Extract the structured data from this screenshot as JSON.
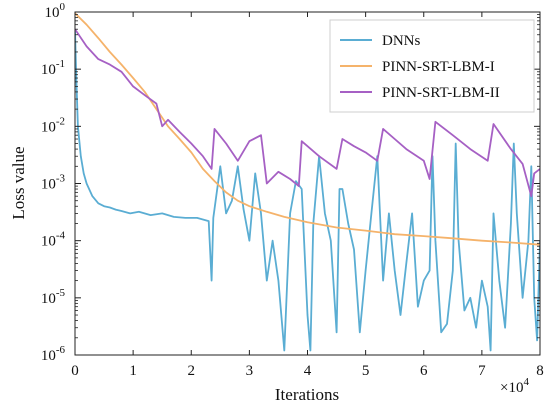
{
  "chart_data": {
    "type": "line",
    "title": "",
    "xlabel": "Iterations",
    "ylabel": "Loss value",
    "x_multiplier": "×10",
    "x_multiplier_exp": "4",
    "xlim": [
      0,
      8
    ],
    "ylim": [
      1e-06,
      1
    ],
    "yscale": "log",
    "grid": false,
    "legend_position": "top-right",
    "x_ticks": [
      0,
      1,
      2,
      3,
      4,
      5,
      6,
      7,
      8
    ],
    "y_ticks": [
      {
        "value": 1,
        "base": "10",
        "exp": "0"
      },
      {
        "value": 0.1,
        "base": "10",
        "exp": "-1"
      },
      {
        "value": 0.01,
        "base": "10",
        "exp": "-2"
      },
      {
        "value": 0.001,
        "base": "10",
        "exp": "-3"
      },
      {
        "value": 0.0001,
        "base": "10",
        "exp": "-4"
      },
      {
        "value": 1e-05,
        "base": "10",
        "exp": "-5"
      },
      {
        "value": 1e-06,
        "base": "10",
        "exp": "-6"
      }
    ],
    "series": [
      {
        "name": "DNNs",
        "color": "#5aadd3",
        "points": [
          [
            0.0,
            0.5
          ],
          [
            0.02,
            0.08
          ],
          [
            0.05,
            0.01
          ],
          [
            0.1,
            0.003
          ],
          [
            0.15,
            0.0015
          ],
          [
            0.2,
            0.001
          ],
          [
            0.3,
            0.0006
          ],
          [
            0.4,
            0.00045
          ],
          [
            0.5,
            0.0004
          ],
          [
            0.6,
            0.00038
          ],
          [
            0.7,
            0.00035
          ],
          [
            0.8,
            0.00033
          ],
          [
            0.95,
            0.0003
          ],
          [
            1.1,
            0.00032
          ],
          [
            1.3,
            0.00028
          ],
          [
            1.5,
            0.0003
          ],
          [
            1.7,
            0.00026
          ],
          [
            1.9,
            0.00025
          ],
          [
            2.1,
            0.00025
          ],
          [
            2.3,
            0.00022
          ],
          [
            2.35,
            2e-05
          ],
          [
            2.38,
            0.00025
          ],
          [
            2.5,
            0.002
          ],
          [
            2.6,
            0.0003
          ],
          [
            2.7,
            0.0005
          ],
          [
            2.8,
            0.002
          ],
          [
            2.9,
            0.00035
          ],
          [
            3.0,
            0.0001
          ],
          [
            3.1,
            0.0015
          ],
          [
            3.2,
            0.0003
          ],
          [
            3.3,
            2e-05
          ],
          [
            3.4,
            0.0001
          ],
          [
            3.5,
            2e-05
          ],
          [
            3.6,
            1.2e-06
          ],
          [
            3.7,
            0.0003
          ],
          [
            3.8,
            0.0011
          ],
          [
            3.9,
            0.0008
          ],
          [
            4.0,
            5e-06
          ],
          [
            4.05,
            1.2e-06
          ],
          [
            4.1,
            0.0002
          ],
          [
            4.2,
            0.003
          ],
          [
            4.3,
            0.0003
          ],
          [
            4.4,
            0.0001
          ],
          [
            4.5,
            2.5e-06
          ],
          [
            4.55,
            0.0008
          ],
          [
            4.6,
            0.0008
          ],
          [
            4.7,
            0.0002
          ],
          [
            4.8,
            7e-05
          ],
          [
            4.9,
            2.5e-06
          ],
          [
            5.0,
            3e-05
          ],
          [
            5.1,
            0.0003
          ],
          [
            5.2,
            0.003
          ],
          [
            5.3,
            2e-05
          ],
          [
            5.4,
            0.0003
          ],
          [
            5.5,
            3e-05
          ],
          [
            5.6,
            5e-06
          ],
          [
            5.7,
            4e-05
          ],
          [
            5.8,
            0.0003
          ],
          [
            5.9,
            7e-06
          ],
          [
            6.0,
            2e-05
          ],
          [
            6.1,
            3e-05
          ],
          [
            6.15,
            0.003
          ],
          [
            6.2,
            0.0001
          ],
          [
            6.3,
            2.5e-06
          ],
          [
            6.4,
            3.5e-06
          ],
          [
            6.5,
            3e-05
          ],
          [
            6.55,
            0.005
          ],
          [
            6.6,
            0.0001
          ],
          [
            6.7,
            6e-06
          ],
          [
            6.8,
            1e-05
          ],
          [
            6.9,
            3e-06
          ],
          [
            7.0,
            2e-05
          ],
          [
            7.1,
            7e-06
          ],
          [
            7.15,
            1.2e-06
          ],
          [
            7.2,
            0.0003
          ],
          [
            7.3,
            2e-05
          ],
          [
            7.4,
            3e-06
          ],
          [
            7.5,
            0.0002
          ],
          [
            7.55,
            0.005
          ],
          [
            7.6,
            0.0003
          ],
          [
            7.7,
            1e-05
          ],
          [
            7.8,
            0.0001
          ],
          [
            7.85,
            0.002
          ],
          [
            7.9,
            1e-05
          ],
          [
            7.95,
            1.8e-06
          ],
          [
            8.0,
            0.0001
          ]
        ]
      },
      {
        "name": "PINN-SRT-LBM-I",
        "color": "#f5b36b",
        "points": [
          [
            0.0,
            0.95
          ],
          [
            0.2,
            0.6
          ],
          [
            0.4,
            0.35
          ],
          [
            0.6,
            0.2
          ],
          [
            0.8,
            0.12
          ],
          [
            1.0,
            0.07
          ],
          [
            1.2,
            0.04
          ],
          [
            1.4,
            0.02
          ],
          [
            1.6,
            0.01
          ],
          [
            1.8,
            0.006
          ],
          [
            2.0,
            0.0035
          ],
          [
            2.2,
            0.0018
          ],
          [
            2.4,
            0.0011
          ],
          [
            2.6,
            0.0007
          ],
          [
            2.8,
            0.0005
          ],
          [
            3.0,
            0.0004
          ],
          [
            3.3,
            0.00032
          ],
          [
            3.6,
            0.00026
          ],
          [
            4.0,
            0.00021
          ],
          [
            4.5,
            0.00017
          ],
          [
            5.0,
            0.00015
          ],
          [
            5.5,
            0.00013
          ],
          [
            6.0,
            0.00012
          ],
          [
            6.5,
            0.00011
          ],
          [
            7.0,
            0.0001
          ],
          [
            7.5,
            9.3e-05
          ],
          [
            8.0,
            8.5e-05
          ]
        ]
      },
      {
        "name": "PINN-SRT-LBM-II",
        "color": "#a660c4",
        "points": [
          [
            0.0,
            0.5
          ],
          [
            0.2,
            0.25
          ],
          [
            0.4,
            0.15
          ],
          [
            0.6,
            0.12
          ],
          [
            0.8,
            0.09
          ],
          [
            1.0,
            0.05
          ],
          [
            1.2,
            0.035
          ],
          [
            1.4,
            0.025
          ],
          [
            1.5,
            0.01
          ],
          [
            1.6,
            0.013
          ],
          [
            1.8,
            0.008
          ],
          [
            2.0,
            0.005
          ],
          [
            2.2,
            0.003
          ],
          [
            2.35,
            0.0018
          ],
          [
            2.4,
            0.009
          ],
          [
            2.6,
            0.005
          ],
          [
            2.8,
            0.0025
          ],
          [
            3.0,
            0.0055
          ],
          [
            3.2,
            0.007
          ],
          [
            3.3,
            0.001
          ],
          [
            3.5,
            0.0016
          ],
          [
            3.7,
            0.0012
          ],
          [
            3.85,
            0.0009
          ],
          [
            3.9,
            0.0055
          ],
          [
            4.2,
            0.003
          ],
          [
            4.5,
            0.0018
          ],
          [
            4.6,
            0.006
          ],
          [
            4.8,
            0.0045
          ],
          [
            5.0,
            0.0035
          ],
          [
            5.2,
            0.0025
          ],
          [
            5.3,
            0.009
          ],
          [
            5.5,
            0.006
          ],
          [
            5.7,
            0.004
          ],
          [
            6.0,
            0.0025
          ],
          [
            6.1,
            0.0012
          ],
          [
            6.2,
            0.012
          ],
          [
            6.5,
            0.007
          ],
          [
            6.8,
            0.004
          ],
          [
            7.1,
            0.0025
          ],
          [
            7.2,
            0.011
          ],
          [
            7.5,
            0.004
          ],
          [
            7.7,
            0.0022
          ],
          [
            7.85,
            0.0006
          ],
          [
            7.9,
            0.0015
          ],
          [
            8.0,
            0.0018
          ]
        ]
      }
    ]
  }
}
